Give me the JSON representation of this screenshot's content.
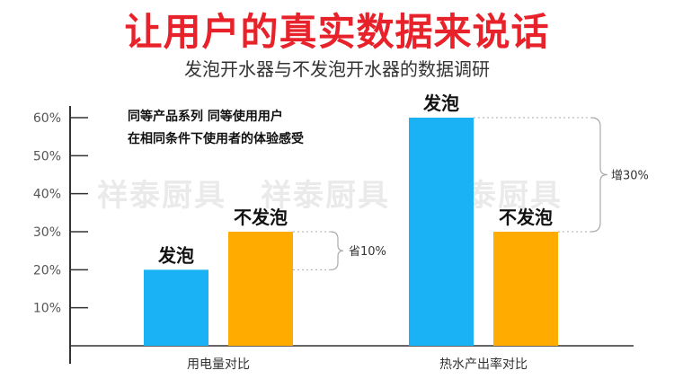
{
  "header": {
    "title": "让用户的真实数据来说话",
    "subtitle": "发泡开水器与不发泡开水器的数据调研"
  },
  "notes": [
    "同等产品系列  同等使用用户",
    "在相同条件下使用者的体验感受"
  ],
  "watermarks": [
    "祥泰厨具",
    "祥泰厨具",
    "祥泰厨具"
  ],
  "colors": {
    "foam": "#1ab2f5",
    "nofoam": "#ffab00",
    "axis": "#333333",
    "bracket": "#aaaaaa"
  },
  "chart_data": {
    "type": "bar",
    "categories": [
      "用电量对比",
      "热水产出率对比"
    ],
    "series": [
      {
        "name": "发泡",
        "values": [
          20,
          60
        ]
      },
      {
        "name": "不发泡",
        "values": [
          30,
          30
        ]
      }
    ],
    "ylim": [
      0,
      60
    ],
    "yticks": [
      "10%",
      "20%",
      "30%",
      "40%",
      "50%",
      "60%"
    ],
    "bar_labels": [
      [
        "发泡",
        "不发泡"
      ],
      [
        "发泡",
        "不发泡"
      ]
    ],
    "annotations": [
      "省10%",
      "增30%"
    ],
    "grid": false
  }
}
